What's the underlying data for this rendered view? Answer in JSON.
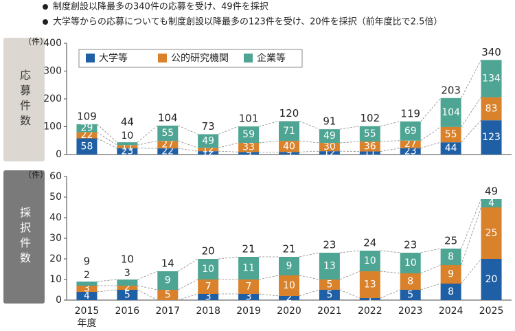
{
  "notes": [
    "制度創設以降最多の340件の応募を受け、49件を採択",
    "大学等からの応募についても制度創設以降最多の123件を受け、20件を採択（前年度比で2.5倍）"
  ],
  "chart_data": [
    {
      "type": "bar",
      "stacked": true,
      "side_label": "応募件数",
      "unit_label": "（件）",
      "legend": true,
      "series": [
        {
          "name": "大学等",
          "color": "#1f5fa6",
          "values": [
            58,
            23,
            22,
            12,
            9,
            9,
            12,
            11,
            23,
            44,
            123
          ]
        },
        {
          "name": "公的研究機関",
          "color": "#d9822b",
          "values": [
            22,
            11,
            27,
            12,
            33,
            40,
            30,
            36,
            27,
            55,
            83
          ]
        },
        {
          "name": "企業等",
          "color": "#4fa593",
          "values": [
            29,
            10,
            55,
            49,
            59,
            71,
            49,
            55,
            69,
            104,
            134
          ]
        }
      ],
      "totals": [
        109,
        44,
        104,
        73,
        101,
        120,
        91,
        102,
        119,
        203,
        340
      ],
      "ylim": [
        0,
        400
      ],
      "yticks": [
        0,
        100,
        200,
        300,
        400
      ]
    },
    {
      "type": "bar",
      "stacked": true,
      "side_label": "採択件数",
      "unit_label": "（件）",
      "legend": false,
      "categories": [
        "2015",
        "2016",
        "2017",
        "2018",
        "2019",
        "2020",
        "2021",
        "2022",
        "2023",
        "2024",
        "2025"
      ],
      "x_label": "年度",
      "series": [
        {
          "color": "#1f5fa6",
          "values": [
            4,
            5,
            0,
            3,
            3,
            2,
            5,
            1,
            5,
            8,
            20
          ]
        },
        {
          "color": "#d9822b",
          "values": [
            3,
            2,
            5,
            7,
            7,
            10,
            5,
            13,
            8,
            9,
            25
          ]
        },
        {
          "color": "#4fa593",
          "values": [
            2,
            3,
            9,
            10,
            11,
            9,
            13,
            10,
            10,
            8,
            4
          ]
        }
      ],
      "totals": [
        9,
        10,
        14,
        20,
        21,
        21,
        23,
        24,
        23,
        25,
        49
      ],
      "ylim": [
        0,
        60
      ],
      "yticks": [
        0,
        10,
        20,
        30,
        40,
        50,
        60
      ]
    }
  ]
}
